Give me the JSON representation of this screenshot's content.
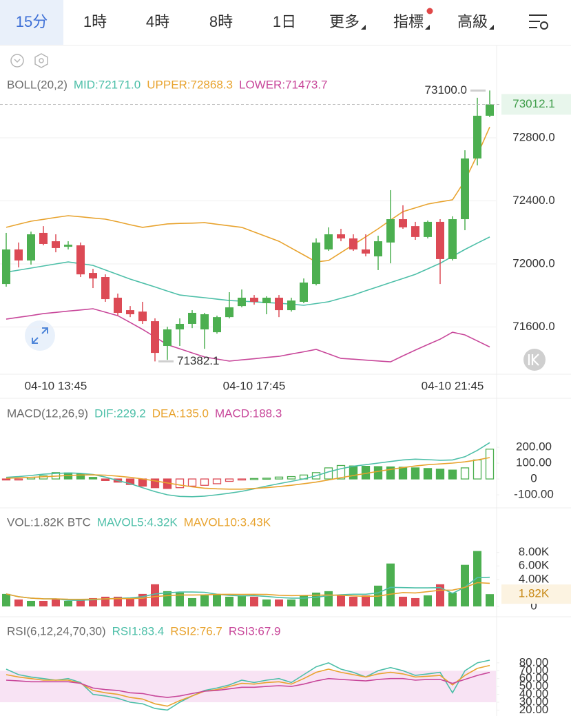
{
  "tabs": [
    "15分",
    "1時",
    "4時",
    "8時",
    "1日",
    "更多",
    "指標",
    "高級"
  ],
  "active_tab": 0,
  "chart_data": [
    {
      "type": "candlestick",
      "legend": [
        {
          "text": "BOLL(20,2)",
          "color": "#6b6b6b"
        },
        {
          "text": "MID:72171.0",
          "color": "#4dbfa8"
        },
        {
          "text": "UPPER:72868.3",
          "color": "#e8a32e"
        },
        {
          "text": "LOWER:71473.7",
          "color": "#c8479a"
        }
      ],
      "categories": [
        null,
        null,
        null,
        null,
        "04-10 13:45",
        null,
        null,
        null,
        null,
        null,
        null,
        null,
        null,
        null,
        null,
        null,
        null,
        null,
        null,
        null,
        "04-10 17:45",
        null,
        null,
        null,
        null,
        null,
        null,
        null,
        null,
        null,
        null,
        null,
        null,
        null,
        null,
        null,
        "04-10 21:45",
        null,
        null,
        null
      ],
      "open": [
        71873,
        72092,
        72022,
        72197,
        72144,
        72109,
        72118,
        71943,
        71917,
        71786,
        71707,
        71698,
        71637,
        71480,
        71585,
        71620,
        71585,
        71567,
        71663,
        71733,
        71786,
        71751,
        71786,
        71707,
        71760,
        71873,
        72092,
        72188,
        72162,
        72092,
        72048,
        72136,
        72284,
        72240,
        72171,
        72267,
        72031,
        72284,
        72669,
        72940
      ],
      "high": [
        72197,
        72136,
        72205,
        72240,
        72188,
        72144,
        72136,
        71969,
        71934,
        71812,
        71733,
        71760,
        71655,
        71602,
        71655,
        71707,
        71690,
        71672,
        71821,
        71838,
        71803,
        71795,
        71803,
        71786,
        71908,
        72162,
        72232,
        72223,
        72188,
        72188,
        72179,
        72468,
        72372,
        72267,
        72275,
        72284,
        72302,
        72721,
        73054,
        73100
      ],
      "low": [
        71856,
        71978,
        71996,
        72118,
        72074,
        72092,
        71917,
        71847,
        71760,
        71672,
        71663,
        71620,
        71382.1,
        71392,
        71480,
        71593,
        71462,
        71558,
        71655,
        71725,
        71742,
        71681,
        71663,
        71698,
        71751,
        71864,
        72083,
        72144,
        72083,
        72048,
        71961,
        72004,
        72223,
        72153,
        72162,
        71873,
        72022,
        72214,
        72625,
        72931
      ],
      "close": [
        72092,
        72022,
        72188,
        72127,
        72101,
        72122,
        71934,
        71908,
        71777,
        71690,
        71681,
        71637,
        71436,
        71585,
        71620,
        71690,
        71681,
        71663,
        71725,
        71786,
        71760,
        71786,
        71707,
        71768,
        71882,
        72136,
        72188,
        72162,
        72092,
        72066,
        72144,
        72284,
        72232,
        72171,
        72267,
        72031,
        72284,
        72669,
        72940,
        73012.1
      ],
      "up_color": "#4caf50",
      "down_color": "#dc4a55",
      "lines": [
        {
          "color": "#4dbfa8",
          "values": [
            71948,
            71961,
            71974,
            71987,
            72000,
            72013,
            72002,
            71991,
            71962,
            71933,
            71904,
            71879,
            71854,
            71828,
            71803,
            71794,
            71786,
            71777,
            71768,
            71764,
            71760,
            71755,
            71751,
            71745,
            71738,
            71749,
            71760,
            71782,
            71803,
            71830,
            71856,
            71882,
            71908,
            71934,
            71969,
            72004,
            72048,
            72092,
            72132,
            72171.0
          ]
        },
        {
          "color": "#e8a32e",
          "values": [
            72232,
            72252,
            72271,
            72283,
            72295,
            72306,
            72299,
            72291,
            72284,
            72267,
            72249,
            72232,
            72243,
            72254,
            72257,
            72259,
            72262,
            72252,
            72242,
            72232,
            72203,
            72173,
            72144,
            72100,
            72057,
            72013,
            72022,
            72072,
            72122,
            72172,
            72223,
            72278,
            72332,
            72356,
            72380,
            72394,
            72407,
            72529,
            72691,
            72868.3
          ]
        },
        {
          "color": "#c8479a",
          "values": [
            71650,
            71662,
            71673,
            71685,
            71693,
            71701,
            71708,
            71716,
            71694,
            71672,
            71629,
            71585,
            71537,
            71488,
            71462,
            71436,
            71410,
            71397,
            71384,
            71392,
            71399,
            71407,
            71414,
            71429,
            71443,
            71458,
            71430,
            71401,
            71396,
            71390,
            71385,
            71379,
            71417,
            71454,
            71489,
            71523,
            71567,
            71550,
            71512,
            71473.7
          ]
        }
      ],
      "ylim": [
        71314,
        73368
      ],
      "yticks": [
        {
          "value": 71600,
          "label": "71600.0"
        },
        {
          "value": 72000,
          "label": "72000.0"
        },
        {
          "value": 72400,
          "label": "72400.0"
        },
        {
          "value": 72800,
          "label": "72800.0"
        }
      ],
      "grid": true,
      "last_price": 73012.1,
      "max_label": {
        "value": 73100,
        "label": "73100.0"
      },
      "min_label": 71382.1
    },
    {
      "type": "macd",
      "legend": [
        {
          "text": "MACD(12,26,9)",
          "color": "#6b6b6b"
        },
        {
          "text": "DIF:229.2",
          "color": "#4dbfa8"
        },
        {
          "text": "DEA:135.0",
          "color": "#e8a32e"
        },
        {
          "text": "MACD:188.3",
          "color": "#c8479a"
        }
      ],
      "values": [
        -5,
        -4,
        10,
        20,
        40,
        38,
        30,
        10,
        -10,
        -20,
        -35,
        -45,
        -55,
        -60,
        -55,
        -45,
        -40,
        -30,
        -15,
        -5,
        3,
        5,
        12,
        15,
        25,
        40,
        70,
        85,
        82,
        80,
        78,
        76,
        74,
        70,
        66,
        62,
        56,
        70,
        120,
        188.3
      ],
      "up_color": "#4caf50",
      "down_color": "#dc4a55",
      "lines": [
        {
          "color": "#4dbfa8",
          "values": [
            10,
            15,
            22,
            30,
            35,
            38,
            36,
            28,
            12,
            -10,
            -30,
            -55,
            -80,
            -100,
            -110,
            -112,
            -108,
            -100,
            -90,
            -78,
            -62,
            -45,
            -30,
            -15,
            0,
            20,
            45,
            65,
            80,
            90,
            100,
            110,
            120,
            125,
            122,
            118,
            120,
            140,
            180,
            229.2
          ]
        },
        {
          "color": "#e8a32e",
          "values": [
            5,
            7,
            10,
            14,
            18,
            22,
            25,
            26,
            24,
            18,
            10,
            0,
            -12,
            -25,
            -38,
            -50,
            -58,
            -62,
            -64,
            -64,
            -60,
            -55,
            -48,
            -40,
            -30,
            -20,
            -6,
            8,
            22,
            35,
            48,
            60,
            72,
            82,
            90,
            95,
            100,
            108,
            120,
            135.0
          ]
        }
      ],
      "ylim": [
        -152,
        348
      ],
      "yticks": [
        {
          "value": 200,
          "label": "200.00"
        },
        {
          "value": 100,
          "label": "100.00"
        },
        0,
        {
          "value": -100,
          "label": "-100.00"
        }
      ]
    },
    {
      "type": "volume",
      "legend": [
        {
          "text": "VOL:1.82K BTC",
          "color": "#6b6b6b"
        },
        {
          "text": "MAVOL5:4.32K",
          "color": "#4dbfa8"
        },
        {
          "text": "MAVOL10:3.43K",
          "color": "#e8a32e"
        }
      ],
      "values": [
        1850,
        1030,
        820,
        820,
        1030,
        820,
        1030,
        1230,
        1440,
        1440,
        1230,
        1850,
        3280,
        2260,
        2050,
        1230,
        1640,
        1850,
        1440,
        1640,
        1440,
        1030,
        1030,
        1030,
        1640,
        2050,
        2260,
        1640,
        1440,
        1640,
        3080,
        6360,
        1440,
        1230,
        1640,
        3280,
        2050,
        6160,
        8210,
        1820
      ],
      "lines": [
        {
          "color": "#4dbfa8",
          "values": [
            1850,
            1440,
            1233,
            1130,
            1110,
            904,
            904,
            986,
            1110,
            1192,
            1274,
            1438,
            1848,
            2012,
            2134,
            2134,
            2092,
            1806,
            1642,
            1560,
            1602,
            1480,
            1316,
            1234,
            1234,
            1356,
            1602,
            1724,
            1806,
            1806,
            2012,
            2832,
            2792,
            2750,
            2750,
            2790,
            1928,
            2872,
            4268,
            4320
          ]
        },
        {
          "color": "#e8a32e",
          "values": [
            1850,
            1440,
            1233,
            1130,
            1110,
            1060,
            1050,
            1070,
            1110,
            1150,
            1150,
            1220,
            1460,
            1600,
            1700,
            1700,
            1720,
            1780,
            1800,
            1780,
            1800,
            1780,
            1650,
            1600,
            1630,
            1660,
            1690,
            1650,
            1560,
            1500,
            1520,
            1820,
            2050,
            2000,
            2190,
            2400,
            2420,
            2820,
            3520,
            3430
          ]
        }
      ],
      "ylim": [
        0,
        9700
      ],
      "yticks": [
        {
          "value": 8000,
          "label": "8.00K"
        },
        {
          "value": 6000,
          "label": "6.00K"
        },
        {
          "value": 4000,
          "label": "4.00K"
        },
        0
      ],
      "last_value": {
        "value": 1820,
        "label": "1.82K"
      }
    },
    {
      "type": "rsi",
      "legend": [
        {
          "text": "RSI(6,12,24,70,30)",
          "color": "#6b6b6b"
        },
        {
          "text": "RSI1:83.4",
          "color": "#4dbfa8"
        },
        {
          "text": "RSI2:76.7",
          "color": "#e8a32e"
        },
        {
          "text": "RSI3:67.9",
          "color": "#c8479a"
        }
      ],
      "lines": [
        {
          "color": "#4dbfa8",
          "values": [
            72,
            65,
            62,
            60,
            58,
            60,
            55,
            40,
            38,
            35,
            30,
            28,
            22,
            20,
            30,
            38,
            45,
            48,
            52,
            58,
            55,
            58,
            60,
            55,
            65,
            75,
            80,
            72,
            68,
            62,
            70,
            74,
            70,
            64,
            66,
            68,
            42,
            70,
            80,
            83.4
          ]
        },
        {
          "color": "#e8a32e",
          "values": [
            65,
            62,
            60,
            58,
            58,
            58,
            54,
            45,
            42,
            40,
            36,
            34,
            28,
            25,
            32,
            38,
            44,
            46,
            50,
            54,
            53,
            55,
            56,
            53,
            60,
            68,
            72,
            68,
            65,
            62,
            66,
            68,
            66,
            62,
            63,
            64,
            52,
            64,
            73,
            76.7
          ]
        },
        {
          "color": "#c8479a",
          "values": [
            58,
            57,
            56,
            56,
            56,
            56,
            54,
            48,
            46,
            45,
            42,
            41,
            38,
            36,
            38,
            41,
            44,
            45,
            47,
            49,
            49,
            50,
            51,
            50,
            53,
            57,
            60,
            59,
            58,
            57,
            59,
            60,
            60,
            58,
            59,
            59,
            54,
            59,
            64,
            67.9
          ]
        }
      ],
      "ylim": [
        16,
        86
      ],
      "yticks": [
        {
          "value": 80,
          "label": "80.00"
        },
        {
          "value": 70,
          "label": "70.00"
        },
        {
          "value": 60,
          "label": "60.00"
        },
        {
          "value": 50,
          "label": "50.00"
        },
        {
          "value": 40,
          "label": "40.00"
        },
        {
          "value": 30,
          "label": "30.00"
        },
        {
          "value": 20,
          "label": "20.00"
        }
      ],
      "band": [
        30,
        70
      ],
      "band_color": "#f8e3f4"
    }
  ]
}
